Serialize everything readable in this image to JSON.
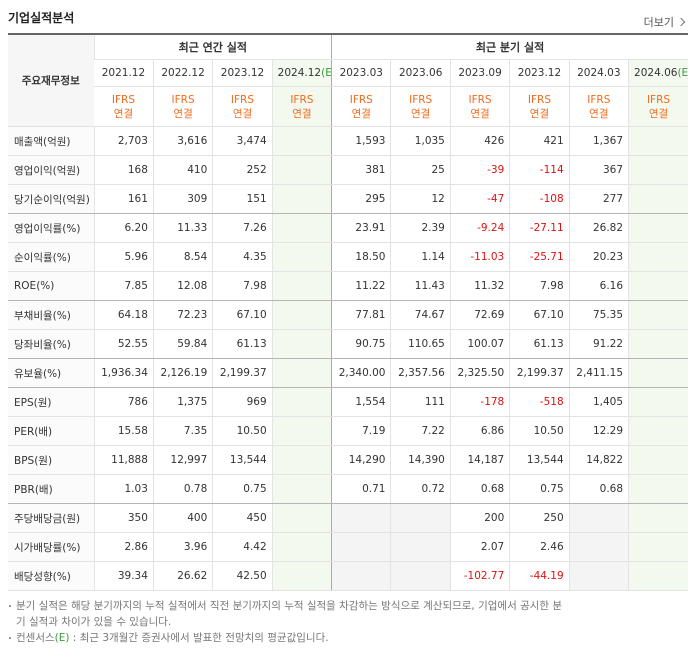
{
  "header": {
    "title": "기업실적분석",
    "more": "더보기"
  },
  "table": {
    "corner": "주요재무정보",
    "groups": [
      {
        "label": "최근 연간 실적",
        "span": 4
      },
      {
        "label": "최근 분기 실적",
        "span": 6
      }
    ],
    "columns": [
      {
        "period": "2021.12"
      },
      {
        "period": "2022.12"
      },
      {
        "period": "2023.12"
      },
      {
        "period": "2024.12",
        "estimate": "(E)"
      },
      {
        "period": "2023.03"
      },
      {
        "period": "2023.06"
      },
      {
        "period": "2023.09"
      },
      {
        "period": "2023.12"
      },
      {
        "period": "2024.03"
      },
      {
        "period": "2024.06",
        "estimate": "(E)"
      }
    ],
    "basis": [
      {
        "standard": "IFRS",
        "scope": "연결"
      },
      {
        "standard": "IFRS",
        "scope": "연결"
      },
      {
        "standard": "IFRS",
        "scope": "연결"
      },
      {
        "standard": "IFRS",
        "scope": "연결"
      },
      {
        "standard": "IFRS",
        "scope": "연결"
      },
      {
        "standard": "IFRS",
        "scope": "연결"
      },
      {
        "standard": "IFRS",
        "scope": "연결"
      },
      {
        "standard": "IFRS",
        "scope": "연결"
      },
      {
        "standard": "IFRS",
        "scope": "연결"
      },
      {
        "standard": "IFRS",
        "scope": "연결"
      }
    ],
    "rows": [
      {
        "label": "매출액(억원)",
        "cells": [
          "2,703",
          "3,616",
          "3,474",
          null,
          "1,593",
          "1,035",
          "426",
          "421",
          "1,367",
          null
        ]
      },
      {
        "label": "영업이익(억원)",
        "cells": [
          "168",
          "410",
          "252",
          null,
          "381",
          "25",
          "-39",
          "-114",
          "367",
          null
        ]
      },
      {
        "label": "당기순이익(억원)",
        "cells": [
          "161",
          "309",
          "151",
          null,
          "295",
          "12",
          "-47",
          "-108",
          "277",
          null
        ]
      },
      {
        "label": "영업이익률(%)",
        "cells": [
          "6.20",
          "11.33",
          "7.26",
          null,
          "23.91",
          "2.39",
          "-9.24",
          "-27.11",
          "26.82",
          null
        ]
      },
      {
        "label": "순이익률(%)",
        "cells": [
          "5.96",
          "8.54",
          "4.35",
          null,
          "18.50",
          "1.14",
          "-11.03",
          "-25.71",
          "20.23",
          null
        ]
      },
      {
        "label": "ROE(%)",
        "cells": [
          "7.85",
          "12.08",
          "7.98",
          null,
          "11.22",
          "11.43",
          "11.32",
          "7.98",
          "6.16",
          null
        ]
      },
      {
        "label": "부채비율(%)",
        "cells": [
          "64.18",
          "72.23",
          "67.10",
          null,
          "77.81",
          "74.67",
          "72.69",
          "67.10",
          "75.35",
          null
        ]
      },
      {
        "label": "당좌비율(%)",
        "cells": [
          "52.55",
          "59.84",
          "61.13",
          null,
          "90.75",
          "110.65",
          "100.07",
          "61.13",
          "91.22",
          null
        ]
      },
      {
        "label": "유보율(%)",
        "cells": [
          "1,936.34",
          "2,126.19",
          "2,199.37",
          null,
          "2,340.00",
          "2,357.56",
          "2,325.50",
          "2,199.37",
          "2,411.15",
          null
        ]
      },
      {
        "label": "EPS(원)",
        "cells": [
          "786",
          "1,375",
          "969",
          null,
          "1,554",
          "111",
          "-178",
          "-518",
          "1,405",
          null
        ]
      },
      {
        "label": "PER(배)",
        "cells": [
          "15.58",
          "7.35",
          "10.50",
          null,
          "7.19",
          "7.22",
          "6.86",
          "10.50",
          "12.29",
          null
        ]
      },
      {
        "label": "BPS(원)",
        "cells": [
          "11,888",
          "12,997",
          "13,544",
          null,
          "14,290",
          "14,390",
          "14,187",
          "13,544",
          "14,822",
          null
        ]
      },
      {
        "label": "PBR(배)",
        "cells": [
          "1.03",
          "0.78",
          "0.75",
          null,
          "0.71",
          "0.72",
          "0.68",
          "0.75",
          "0.68",
          null
        ]
      },
      {
        "label": "주당배당금(원)",
        "cells": [
          "350",
          "400",
          "450",
          null,
          null,
          null,
          "200",
          "250",
          null,
          null
        ]
      },
      {
        "label": "시가배당률(%)",
        "cells": [
          "2.86",
          "3.96",
          "4.42",
          null,
          null,
          null,
          "2.07",
          "2.46",
          null,
          null
        ]
      },
      {
        "label": "배당성향(%)",
        "cells": [
          "39.34",
          "26.62",
          "42.50",
          null,
          null,
          null,
          "-102.77",
          "-44.19",
          null,
          null
        ]
      }
    ]
  },
  "notes": [
    {
      "text": "분기 실적은 해당 분기까지의 누적 실적에서 직전 분기까지의 누적 실적을 차감하는 방식으로 계산되므로, 기업에서 공시한 분기 실적과 차이가 있을 수 있습니다."
    },
    {
      "prefix": "컨센서스",
      "mark": "(E)",
      "text": " : 최근 3개월간 증권사에서 발표한 전망치의 평균값입니다."
    }
  ]
}
